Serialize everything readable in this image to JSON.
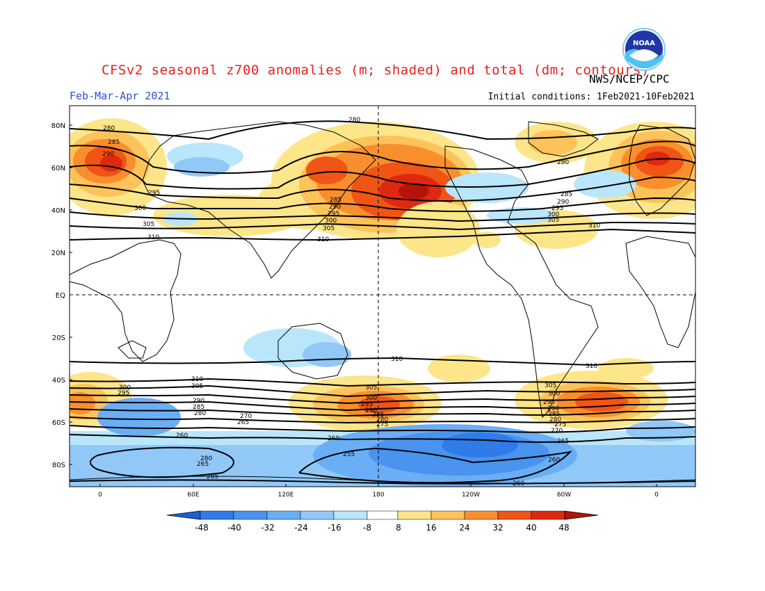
{
  "header": {
    "title": "CFSv2 seasonal z700 anomalies (m; shaded) and total (dm; contours)",
    "agency": "NWS/NCEP/CPC",
    "period": "Feb-Mar-Apr 2021",
    "initial_conditions": "Initial conditions: 1Feb2021-10Feb2021",
    "logo_text": "NOAA"
  },
  "axes": {
    "lat_labels": [
      "80N",
      "60N",
      "40N",
      "20N",
      "EQ",
      "20S",
      "40S",
      "60S",
      "80S"
    ],
    "lon_labels": [
      "0",
      "60E",
      "120E",
      "180",
      "120W",
      "60W",
      "0"
    ]
  },
  "colorbar": {
    "ticks": [
      "-48",
      "-40",
      "-32",
      "-24",
      "-16",
      "-8",
      "8",
      "16",
      "24",
      "32",
      "40",
      "48"
    ],
    "colors": [
      "#1a5fd6",
      "#2f7be8",
      "#4a93ef",
      "#6aaef5",
      "#91c8f8",
      "#b9e6fb",
      "#ffffff",
      "#fde58a",
      "#fcc35a",
      "#f98f2c",
      "#f05516",
      "#e02810",
      "#b51508"
    ]
  },
  "contour_labels": [
    {
      "text": "280"
    },
    {
      "text": "285"
    },
    {
      "text": "290"
    },
    {
      "text": "295"
    },
    {
      "text": "300"
    },
    {
      "text": "305"
    },
    {
      "text": "310"
    },
    {
      "text": "280"
    },
    {
      "text": "285"
    },
    {
      "text": "290"
    },
    {
      "text": "295"
    },
    {
      "text": "300"
    },
    {
      "text": "305"
    },
    {
      "text": "310"
    },
    {
      "text": "280"
    },
    {
      "text": "285"
    },
    {
      "text": "290"
    },
    {
      "text": "295"
    },
    {
      "text": "300"
    },
    {
      "text": "305"
    },
    {
      "text": "310"
    },
    {
      "text": "310"
    },
    {
      "text": "310"
    },
    {
      "text": "310"
    },
    {
      "text": "310"
    },
    {
      "text": "305"
    },
    {
      "text": "300"
    },
    {
      "text": "295"
    },
    {
      "text": "290"
    },
    {
      "text": "285"
    },
    {
      "text": "280"
    },
    {
      "text": "275"
    },
    {
      "text": "270"
    },
    {
      "text": "265"
    },
    {
      "text": "260"
    },
    {
      "text": "260"
    },
    {
      "text": "255"
    },
    {
      "text": "280"
    },
    {
      "text": "265"
    },
    {
      "text": "285"
    },
    {
      "text": "305"
    },
    {
      "text": "300"
    },
    {
      "text": "295"
    },
    {
      "text": "290"
    },
    {
      "text": "285"
    },
    {
      "text": "280"
    },
    {
      "text": "275"
    },
    {
      "text": "305"
    },
    {
      "text": "300"
    },
    {
      "text": "295"
    },
    {
      "text": "290"
    },
    {
      "text": "285"
    },
    {
      "text": "280"
    },
    {
      "text": "275"
    },
    {
      "text": "270"
    },
    {
      "text": "265"
    },
    {
      "text": "260"
    },
    {
      "text": "260"
    }
  ]
}
